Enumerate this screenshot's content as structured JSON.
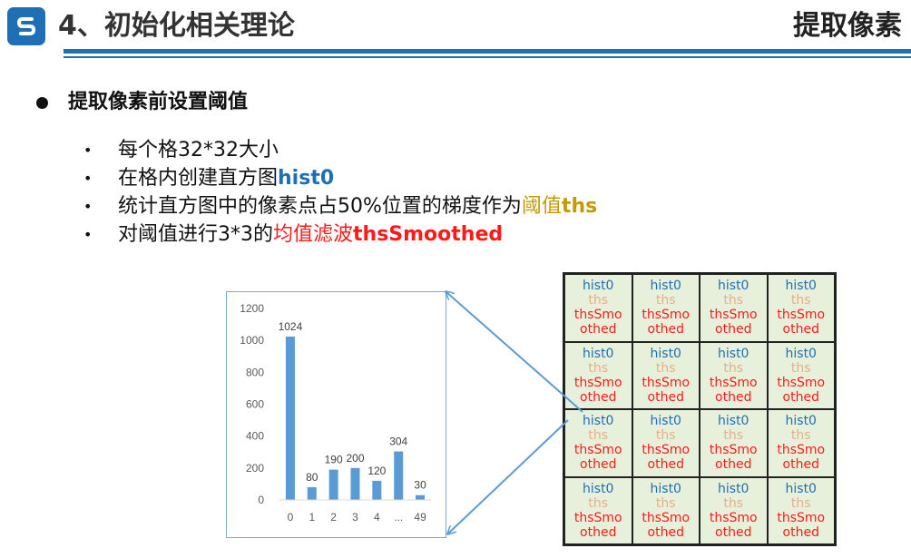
{
  "header": {
    "title": "4、初始化相关理论",
    "right_title": "提取像素",
    "accent_color": "#1f6fb5"
  },
  "section": {
    "heading": "提取像素前设置阈值"
  },
  "bullets": [
    {
      "text": "每个格32*32大小"
    },
    {
      "text": "在格内创建直方图",
      "highlight": "hist0"
    },
    {
      "text": "统计直方图中的像素点占50%位置的梯度作为",
      "highlight_a": "阈值",
      "highlight_b": "ths"
    },
    {
      "text": "对阈值进行3*3的",
      "highlight_a": "均值滤波",
      "highlight_b": "thsSmoothed"
    }
  ],
  "chart_data": {
    "type": "bar",
    "categories": [
      "0",
      "1",
      "2",
      "3",
      "4",
      "...",
      "49"
    ],
    "values": [
      1024,
      80,
      190,
      200,
      120,
      304,
      30
    ],
    "ylim": [
      0,
      1200
    ],
    "yticks": [
      0,
      200,
      400,
      600,
      800,
      1000,
      1200
    ],
    "bar_color": "#5b9bd5",
    "grid": false,
    "title": "",
    "xlabel": "",
    "ylabel": ""
  },
  "grid_cell": {
    "line1": "hist0",
    "line2": "ths",
    "line3a": "thsSmo",
    "line3b": "othed"
  }
}
